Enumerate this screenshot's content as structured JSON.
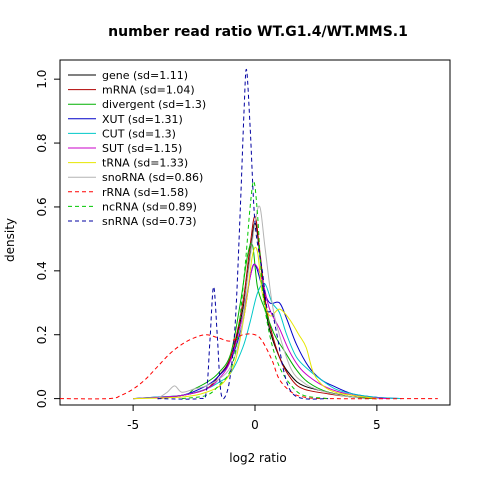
{
  "chart_data": {
    "type": "line",
    "title": "number read ratio WT.G1.4/WT.MMS.1",
    "xlabel": "log2 ratio",
    "ylabel": "density",
    "xlim": [
      -8,
      8
    ],
    "ylim": [
      -0.02,
      1.06
    ],
    "x_ticks": [
      -5,
      0,
      5
    ],
    "x_tick_labels": [
      "-5",
      "0",
      "5"
    ],
    "y_ticks": [
      0.0,
      0.2,
      0.4,
      0.6,
      0.8,
      1.0
    ],
    "y_tick_labels": [
      "0.0",
      "0.2",
      "0.4",
      "0.6",
      "0.8",
      "1.0"
    ],
    "grid": false,
    "legend_position": "top-left",
    "series": [
      {
        "name": "gene (sd=1.11)",
        "color": "#000000",
        "dash": "solid",
        "points": [
          [
            -4,
            0
          ],
          [
            -3,
            0.01
          ],
          [
            -2,
            0.03
          ],
          [
            -1.5,
            0.07
          ],
          [
            -1,
            0.13
          ],
          [
            -0.5,
            0.28
          ],
          [
            -0.2,
            0.45
          ],
          [
            0,
            0.55
          ],
          [
            0.2,
            0.45
          ],
          [
            0.5,
            0.25
          ],
          [
            1,
            0.13
          ],
          [
            1.5,
            0.07
          ],
          [
            2,
            0.04
          ],
          [
            3,
            0.02
          ],
          [
            4,
            0.005
          ],
          [
            5,
            0
          ]
        ]
      },
      {
        "name": "mRNA (sd=1.04)",
        "color": "#b00000",
        "dash": "solid",
        "points": [
          [
            -4,
            0
          ],
          [
            -3,
            0.01
          ],
          [
            -2,
            0.03
          ],
          [
            -1.5,
            0.07
          ],
          [
            -1,
            0.13
          ],
          [
            -0.5,
            0.3
          ],
          [
            -0.2,
            0.48
          ],
          [
            0,
            0.57
          ],
          [
            0.2,
            0.46
          ],
          [
            0.5,
            0.27
          ],
          [
            1,
            0.13
          ],
          [
            1.5,
            0.06
          ],
          [
            2,
            0.03
          ],
          [
            3,
            0.015
          ],
          [
            4,
            0.005
          ],
          [
            5,
            0
          ]
        ]
      },
      {
        "name": "divergent (sd=1.3)",
        "color": "#00b000",
        "dash": "solid",
        "points": [
          [
            -5,
            0
          ],
          [
            -3,
            0.01
          ],
          [
            -2.5,
            0.03
          ],
          [
            -2,
            0.05
          ],
          [
            -1.5,
            0.08
          ],
          [
            -1,
            0.14
          ],
          [
            -0.6,
            0.3
          ],
          [
            -0.3,
            0.45
          ],
          [
            -0.1,
            0.48
          ],
          [
            0.1,
            0.35
          ],
          [
            0.4,
            0.28
          ],
          [
            0.8,
            0.2
          ],
          [
            1.2,
            0.15
          ],
          [
            1.7,
            0.09
          ],
          [
            2.2,
            0.05
          ],
          [
            3,
            0.02
          ],
          [
            4,
            0.005
          ],
          [
            5,
            0
          ]
        ]
      },
      {
        "name": "XUT (sd=1.31)",
        "color": "#0000c8",
        "dash": "solid",
        "points": [
          [
            -5,
            0
          ],
          [
            -4,
            0.005
          ],
          [
            -3,
            0.01
          ],
          [
            -2,
            0.04
          ],
          [
            -1.5,
            0.07
          ],
          [
            -1,
            0.12
          ],
          [
            -0.5,
            0.24
          ],
          [
            -0.2,
            0.38
          ],
          [
            0,
            0.42
          ],
          [
            0.3,
            0.35
          ],
          [
            0.6,
            0.3
          ],
          [
            1,
            0.3
          ],
          [
            1.3,
            0.25
          ],
          [
            1.7,
            0.17
          ],
          [
            2.2,
            0.1
          ],
          [
            2.7,
            0.06
          ],
          [
            3.2,
            0.04
          ],
          [
            4,
            0.015
          ],
          [
            5,
            0.004
          ],
          [
            6,
            0
          ]
        ]
      },
      {
        "name": "CUT (sd=1.3)",
        "color": "#00c8c8",
        "dash": "solid",
        "points": [
          [
            -5,
            0
          ],
          [
            -4,
            0.005
          ],
          [
            -3,
            0.01
          ],
          [
            -2,
            0.03
          ],
          [
            -1.5,
            0.05
          ],
          [
            -1,
            0.08
          ],
          [
            -0.5,
            0.16
          ],
          [
            -0.2,
            0.24
          ],
          [
            0.1,
            0.33
          ],
          [
            0.4,
            0.36
          ],
          [
            0.7,
            0.3
          ],
          [
            1,
            0.27
          ],
          [
            1.3,
            0.2
          ],
          [
            1.7,
            0.13
          ],
          [
            2.2,
            0.09
          ],
          [
            2.7,
            0.06
          ],
          [
            3.3,
            0.03
          ],
          [
            4,
            0.015
          ],
          [
            5,
            0.004
          ],
          [
            6,
            0
          ]
        ]
      },
      {
        "name": "SUT (sd=1.15)",
        "color": "#c800c8",
        "dash": "solid",
        "points": [
          [
            -5,
            0
          ],
          [
            -4,
            0.004
          ],
          [
            -3,
            0.01
          ],
          [
            -2,
            0.03
          ],
          [
            -1.5,
            0.06
          ],
          [
            -1,
            0.12
          ],
          [
            -0.5,
            0.26
          ],
          [
            -0.2,
            0.38
          ],
          [
            0,
            0.42
          ],
          [
            0.3,
            0.37
          ],
          [
            0.6,
            0.28
          ],
          [
            1,
            0.22
          ],
          [
            1.4,
            0.15
          ],
          [
            1.8,
            0.1
          ],
          [
            2.2,
            0.07
          ],
          [
            2.8,
            0.04
          ],
          [
            3.5,
            0.02
          ],
          [
            4.5,
            0.005
          ],
          [
            5.5,
            0
          ]
        ]
      },
      {
        "name": "tRNA (sd=1.33)",
        "color": "#e6e600",
        "dash": "solid",
        "points": [
          [
            -5,
            0
          ],
          [
            -3,
            0.005
          ],
          [
            -2,
            0.02
          ],
          [
            -1.3,
            0.05
          ],
          [
            -0.8,
            0.12
          ],
          [
            -0.4,
            0.28
          ],
          [
            -0.1,
            0.45
          ],
          [
            0.1,
            0.46
          ],
          [
            0.3,
            0.33
          ],
          [
            0.6,
            0.26
          ],
          [
            1,
            0.28
          ],
          [
            1.4,
            0.25
          ],
          [
            1.8,
            0.2
          ],
          [
            2.1,
            0.16
          ],
          [
            2.4,
            0.08
          ],
          [
            2.8,
            0.04
          ],
          [
            3.3,
            0.02
          ],
          [
            4,
            0.01
          ],
          [
            5,
            0
          ]
        ]
      },
      {
        "name": "snoRNA (sd=0.86)",
        "color": "#b4b4b4",
        "dash": "solid",
        "points": [
          [
            -4,
            0
          ],
          [
            -3.6,
            0.02
          ],
          [
            -3.3,
            0.04
          ],
          [
            -3,
            0.02
          ],
          [
            -2.5,
            0.03
          ],
          [
            -2,
            0.04
          ],
          [
            -1.5,
            0.06
          ],
          [
            -1,
            0.1
          ],
          [
            -0.6,
            0.2
          ],
          [
            -0.3,
            0.38
          ],
          [
            0,
            0.55
          ],
          [
            0.2,
            0.6
          ],
          [
            0.4,
            0.48
          ],
          [
            0.7,
            0.3
          ],
          [
            1,
            0.2
          ],
          [
            1.5,
            0.09
          ],
          [
            2,
            0.05
          ],
          [
            2.5,
            0.03
          ],
          [
            3.5,
            0.01
          ],
          [
            4.5,
            0
          ]
        ]
      },
      {
        "name": "rRNA (sd=1.58)",
        "color": "#ff0000",
        "dash": "dashed",
        "points": [
          [
            -8,
            0
          ],
          [
            -6,
            0
          ],
          [
            -5.5,
            0.01
          ],
          [
            -5,
            0.03
          ],
          [
            -4.5,
            0.06
          ],
          [
            -4,
            0.1
          ],
          [
            -3.5,
            0.14
          ],
          [
            -3,
            0.17
          ],
          [
            -2.5,
            0.19
          ],
          [
            -2,
            0.2
          ],
          [
            -1.5,
            0.19
          ],
          [
            -1,
            0.18
          ],
          [
            -0.5,
            0.2
          ],
          [
            0,
            0.2
          ],
          [
            0.3,
            0.18
          ],
          [
            0.7,
            0.12
          ],
          [
            1,
            0.06
          ],
          [
            1.5,
            0.02
          ],
          [
            2,
            0.005
          ],
          [
            3,
            0
          ],
          [
            7.5,
            0
          ]
        ]
      },
      {
        "name": "ncRNA (sd=0.89)",
        "color": "#00c800",
        "dash": "dashed",
        "points": [
          [
            -3,
            0
          ],
          [
            -2,
            0.01
          ],
          [
            -1.5,
            0.04
          ],
          [
            -1,
            0.09
          ],
          [
            -0.7,
            0.2
          ],
          [
            -0.4,
            0.42
          ],
          [
            -0.2,
            0.6
          ],
          [
            -0.05,
            0.68
          ],
          [
            0.1,
            0.58
          ],
          [
            0.3,
            0.35
          ],
          [
            0.6,
            0.2
          ],
          [
            1,
            0.1
          ],
          [
            1.5,
            0.04
          ],
          [
            2,
            0.01
          ],
          [
            3,
            0
          ]
        ]
      },
      {
        "name": "snRNA (sd=0.73)",
        "color": "#0000a0",
        "dash": "dashed",
        "points": [
          [
            -4,
            0
          ],
          [
            -2.3,
            0
          ],
          [
            -2,
            0.02
          ],
          [
            -1.85,
            0.18
          ],
          [
            -1.7,
            0.35
          ],
          [
            -1.55,
            0.2
          ],
          [
            -1.4,
            0.02
          ],
          [
            -1.2,
            0.01
          ],
          [
            -1,
            0.08
          ],
          [
            -0.8,
            0.25
          ],
          [
            -0.6,
            0.6
          ],
          [
            -0.45,
            0.9
          ],
          [
            -0.35,
            1.03
          ],
          [
            -0.2,
            0.85
          ],
          [
            0,
            0.55
          ],
          [
            0.3,
            0.4
          ],
          [
            0.5,
            0.28
          ],
          [
            0.7,
            0.27
          ],
          [
            0.9,
            0.2
          ],
          [
            1.2,
            0.08
          ],
          [
            1.5,
            0.02
          ],
          [
            2,
            0
          ],
          [
            3,
            0
          ]
        ]
      }
    ]
  }
}
